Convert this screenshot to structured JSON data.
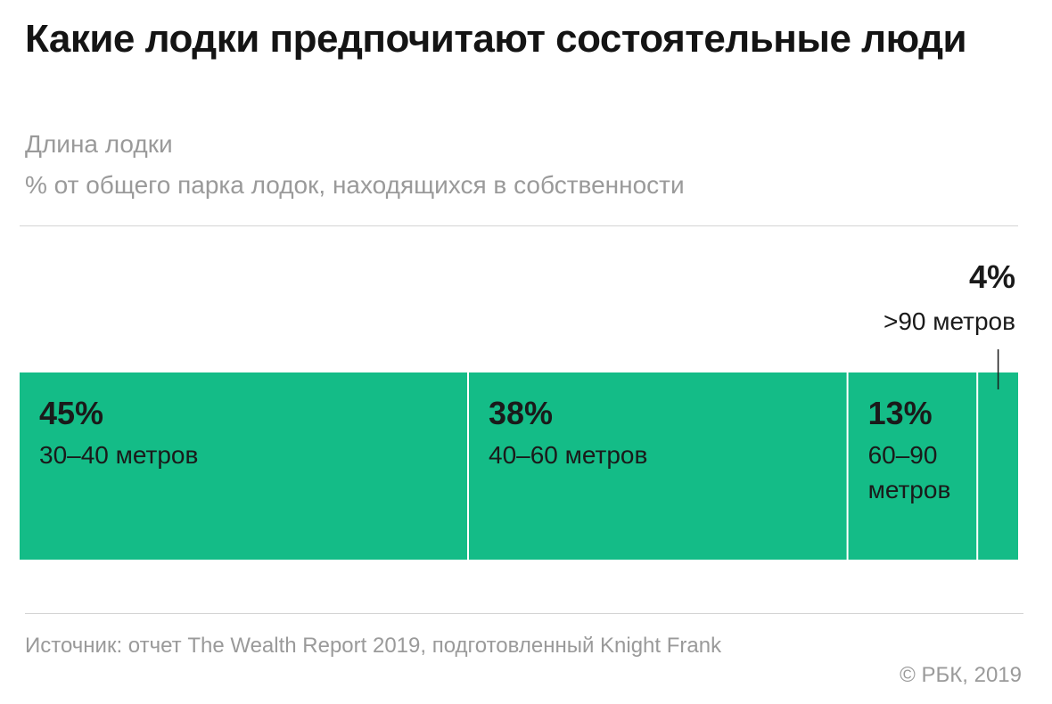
{
  "title": "Какие лодки предпочитают состоятельные люди",
  "subtitle": "Длина лодки",
  "subtitle2": "% от общего парка лодок, находящихся в собственности",
  "source": "Источник: отчет The Wealth Report 2019, подготовленный Knight Frank",
  "copyright": "© РБК, 2019",
  "colors": {
    "bar": "#14bc87",
    "text": "#1a1a1a",
    "muted": "#9a9a9a"
  },
  "chart_data": {
    "type": "bar",
    "orientation": "horizontal-stacked",
    "categories": [
      "30–40 метров",
      "40–60 метров",
      "60–90 метров",
      ">90 метров"
    ],
    "values": [
      45,
      38,
      13,
      4
    ],
    "value_labels": [
      "45%",
      "38%",
      "13%",
      "4%"
    ],
    "unit": "%",
    "grid": false,
    "legend": "none"
  }
}
